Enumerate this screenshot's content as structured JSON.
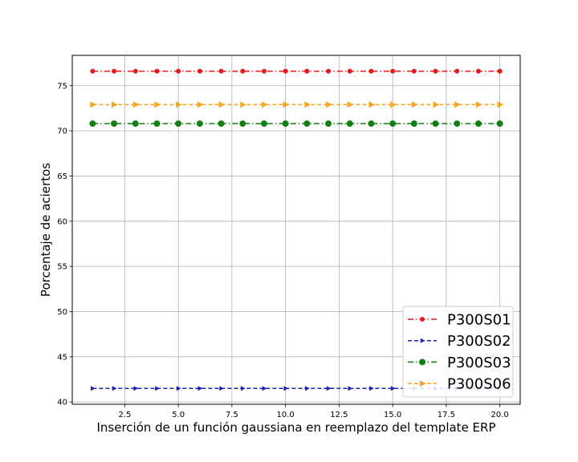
{
  "chart_data": {
    "type": "line",
    "title": "",
    "xlabel": "Inserción de un función gaussiana en reemplazo del template ERP",
    "ylabel": "Porcentaje de aciertos",
    "xlim": [
      0.05,
      20.95
    ],
    "ylim": [
      39.75,
      78.35
    ],
    "xticks": [
      2.5,
      5.0,
      7.5,
      10.0,
      12.5,
      15.0,
      17.5,
      20.0
    ],
    "xtick_labels": [
      "2.5",
      "5.0",
      "7.5",
      "10.0",
      "12.5",
      "15.0",
      "17.5",
      "20.0"
    ],
    "yticks": [
      40,
      45,
      50,
      55,
      60,
      65,
      70,
      75
    ],
    "ytick_labels": [
      "40",
      "45",
      "50",
      "55",
      "60",
      "65",
      "70",
      "75"
    ],
    "grid": true,
    "legend_position": "bottom-right",
    "x": [
      1,
      2,
      3,
      4,
      5,
      6,
      7,
      8,
      9,
      10,
      11,
      12,
      13,
      14,
      15,
      16,
      17,
      18,
      19,
      20
    ],
    "series": [
      {
        "name": "P300S01",
        "color": "#e41a1c",
        "marker": "circle",
        "marker_size": "small",
        "linestyle": "dashdot",
        "values": [
          76.6,
          76.6,
          76.6,
          76.6,
          76.6,
          76.6,
          76.6,
          76.6,
          76.6,
          76.6,
          76.6,
          76.6,
          76.6,
          76.6,
          76.6,
          76.6,
          76.6,
          76.6,
          76.6,
          76.6
        ]
      },
      {
        "name": "P300S02",
        "color": "#1f1fb4",
        "marker": "triangle-right",
        "marker_size": "small",
        "linestyle": "dashed",
        "values": [
          41.5,
          41.5,
          41.5,
          41.5,
          41.5,
          41.5,
          41.5,
          41.5,
          41.5,
          41.5,
          41.5,
          41.5,
          41.5,
          41.5,
          41.5,
          41.5,
          41.5,
          41.5,
          41.5,
          41.5
        ]
      },
      {
        "name": "P300S03",
        "color": "#108010",
        "marker": "circle",
        "marker_size": "large",
        "linestyle": "dashdot",
        "values": [
          70.8,
          70.8,
          70.8,
          70.8,
          70.8,
          70.8,
          70.8,
          70.8,
          70.8,
          70.8,
          70.8,
          70.8,
          70.8,
          70.8,
          70.8,
          70.8,
          70.8,
          70.8,
          70.8,
          70.8
        ]
      },
      {
        "name": "P300S06",
        "color": "#f5a623",
        "marker": "triangle-right",
        "marker_size": "large",
        "linestyle": "dashed",
        "values": [
          72.9,
          72.9,
          72.9,
          72.9,
          72.9,
          72.9,
          72.9,
          72.9,
          72.9,
          72.9,
          72.9,
          72.9,
          72.9,
          72.9,
          72.9,
          72.9,
          72.9,
          72.9,
          72.9,
          72.9
        ]
      }
    ]
  }
}
